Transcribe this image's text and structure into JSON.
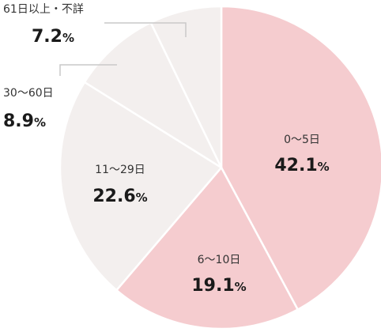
{
  "chart_data": {
    "type": "pie",
    "categories": [
      "0～5日",
      "6～10日",
      "11～29日",
      "30～60日",
      "61日以上・不詳"
    ],
    "values": [
      42.1,
      19.1,
      22.6,
      8.9,
      7.2
    ],
    "value_labels": [
      "42.1",
      "19.1",
      "22.6",
      "8.9",
      "7.2"
    ],
    "unit": "%",
    "start": "top",
    "direction": "clockwise",
    "colors": [
      "#f5cccf",
      "#f5cccf",
      "#f3efee",
      "#f3efee",
      "#f3efee"
    ],
    "separator_color": "#ffffff",
    "leader_line_color": "#c9c9c9",
    "legend": "none"
  }
}
